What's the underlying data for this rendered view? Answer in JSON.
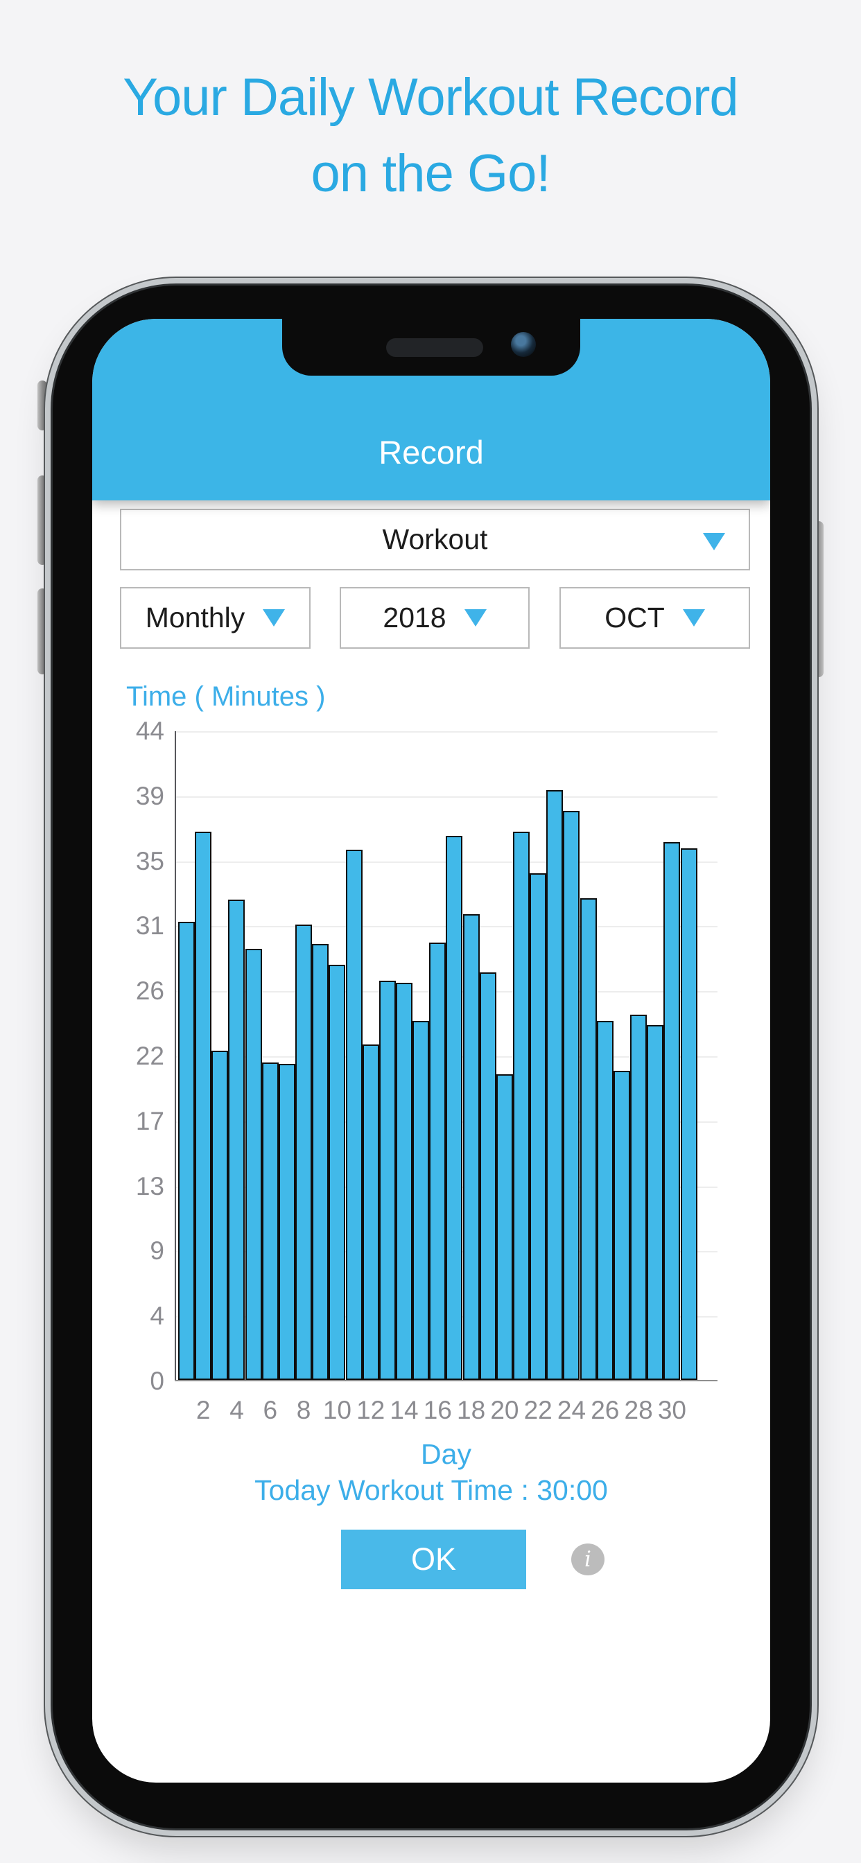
{
  "page": {
    "bg_color": "#f4f4f6",
    "title_line1": "Your Daily Workout Record",
    "title_line2": "on the Go!",
    "title_color": "#2aa9e2"
  },
  "app": {
    "header": {
      "title": "Record",
      "bg_color": "#3cb5e7",
      "text_color": "#ffffff"
    },
    "filters": {
      "category": {
        "value": "Workout"
      },
      "period": {
        "value": "Monthly"
      },
      "year": {
        "value": "2018"
      },
      "month": {
        "value": "OCT"
      },
      "arrow_color": "#3fb3e9"
    },
    "chart_title": "Time ( Minutes )",
    "xaxis_title": "Day",
    "today_line": "Today Workout Time : 30:00",
    "ok_label": "OK",
    "info_glyph": "i",
    "accent_color": "#3caee9",
    "ok_bg_color": "#49b9e9"
  },
  "chart_data": {
    "type": "bar",
    "title": "Time ( Minutes )",
    "xlabel": "Day",
    "ylabel": "Time ( Minutes )",
    "x": [
      1,
      2,
      3,
      4,
      5,
      6,
      7,
      8,
      9,
      10,
      11,
      12,
      13,
      14,
      15,
      16,
      17,
      18,
      19,
      20,
      21,
      22,
      23,
      24,
      25,
      26,
      27,
      28,
      29,
      30,
      31
    ],
    "values": [
      31.0,
      37.1,
      22.3,
      32.5,
      29.2,
      21.5,
      21.4,
      30.8,
      29.5,
      28.1,
      35.9,
      22.7,
      27.0,
      26.9,
      24.3,
      29.6,
      36.8,
      31.5,
      27.6,
      20.7,
      37.1,
      34.3,
      39.9,
      38.5,
      32.6,
      24.3,
      20.9,
      24.7,
      24.0,
      36.4,
      36.0
    ],
    "ylim": [
      0,
      44
    ],
    "y_tick_labels": [
      "44",
      "39",
      "35",
      "31",
      "26",
      "22",
      "17",
      "13",
      "9",
      "4",
      "0"
    ],
    "x_tick_labels": [
      2,
      4,
      6,
      8,
      10,
      12,
      14,
      16,
      18,
      20,
      22,
      24,
      26,
      28,
      30
    ],
    "grid": true,
    "legend": null,
    "bar_color": "#41b9e9",
    "bar_border_color": "#0e0e0e"
  }
}
